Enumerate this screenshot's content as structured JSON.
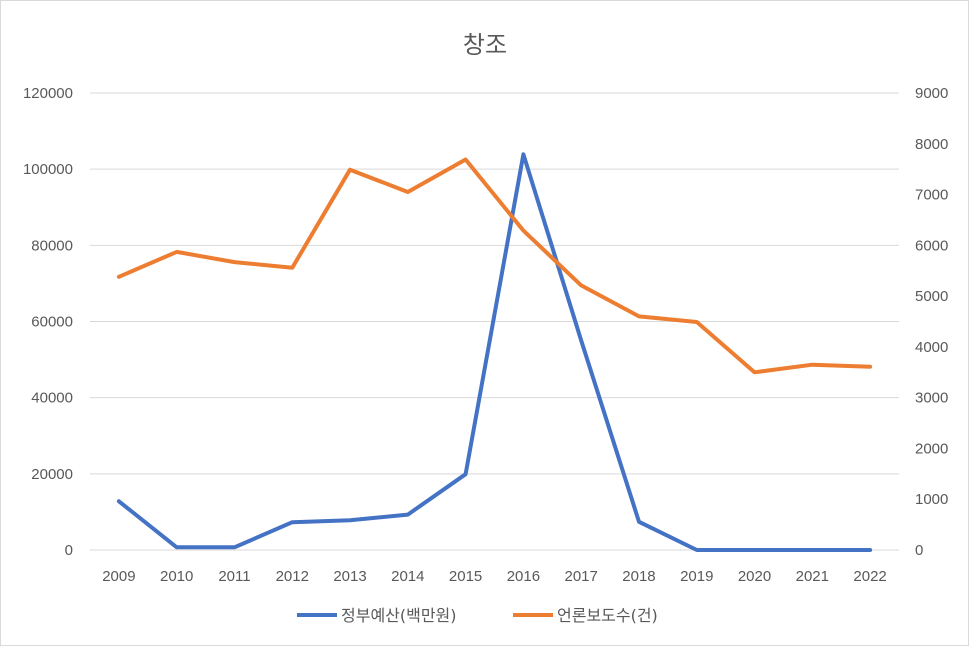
{
  "chart_data": {
    "type": "line",
    "title": "창조",
    "categories": [
      "2009",
      "2010",
      "2011",
      "2012",
      "2013",
      "2014",
      "2015",
      "2016",
      "2017",
      "2018",
      "2019",
      "2020",
      "2021",
      "2022"
    ],
    "y_left": {
      "range": [
        0,
        120000
      ],
      "ticks": [
        "0",
        "20000",
        "40000",
        "60000",
        "80000",
        "100000",
        "120000"
      ]
    },
    "y_right": {
      "range": [
        0,
        9000
      ],
      "ticks": [
        "0",
        "1000",
        "2000",
        "3000",
        "4000",
        "5000",
        "6000",
        "7000",
        "8000",
        "9000"
      ]
    },
    "grid": true,
    "legend_position": "bottom",
    "series": [
      {
        "name": "정부예산(백만원)",
        "axis": "left",
        "color": "#4472C4",
        "values": [
          12800,
          700,
          700,
          7300,
          7800,
          9300,
          19900,
          103900,
          55000,
          7400,
          0,
          0,
          0,
          0
        ]
      },
      {
        "name": "언론보도수(건)",
        "axis": "right",
        "color": "#ED7D31",
        "values": [
          5380,
          5870,
          5670,
          5560,
          7490,
          7050,
          7690,
          6290,
          5210,
          4600,
          4490,
          3500,
          3650,
          3610
        ]
      }
    ]
  }
}
